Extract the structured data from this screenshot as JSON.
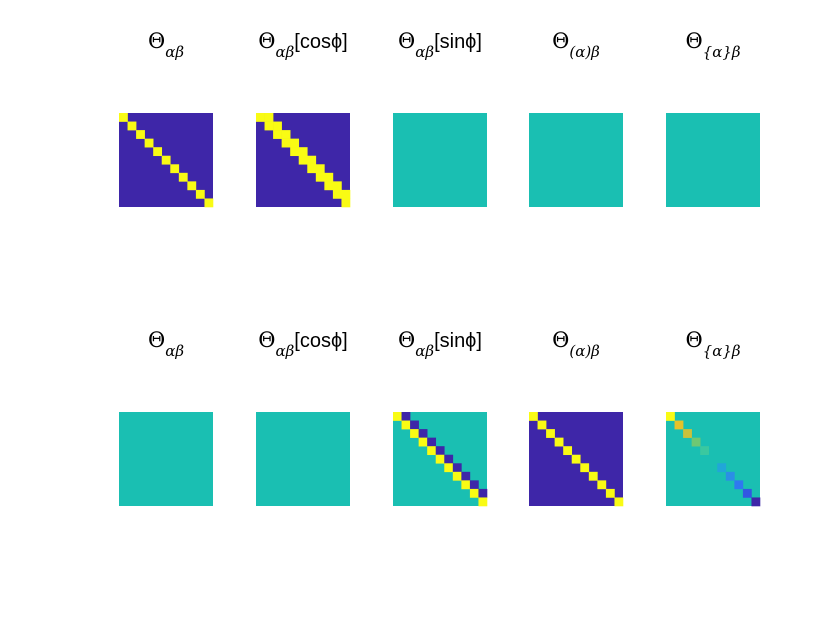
{
  "colors": {
    "low": "#3e26a8",
    "zero": "#1abfb2",
    "high": "#f9fb14"
  },
  "chart_data": [
    {
      "type": "heatmap",
      "row": 0,
      "col": 0,
      "title": {
        "sym": "Θ",
        "sub": "αβ",
        "suffix": ""
      },
      "pattern": "diag",
      "n": 11,
      "background": "low",
      "marks": {
        "0": "high"
      }
    },
    {
      "type": "heatmap",
      "row": 0,
      "col": 1,
      "title": {
        "sym": "Θ",
        "sub": "αβ",
        "suffix": "[cosϕ]"
      },
      "pattern": "diag_band",
      "n": 11,
      "background": "low",
      "marks": {
        "0": "high",
        "1": "high"
      }
    },
    {
      "type": "heatmap",
      "row": 0,
      "col": 2,
      "title": {
        "sym": "Θ",
        "sub": "αβ",
        "suffix": "[sinϕ]"
      },
      "pattern": "uniform",
      "n": 11,
      "background": "zero"
    },
    {
      "type": "heatmap",
      "row": 0,
      "col": 3,
      "title": {
        "sym": "Θ",
        "sub": "(α)β",
        "suffix": ""
      },
      "pattern": "uniform",
      "n": 11,
      "background": "zero"
    },
    {
      "type": "heatmap",
      "row": 0,
      "col": 4,
      "title": {
        "sym": "Θ",
        "sub": "{α}β",
        "suffix": ""
      },
      "pattern": "uniform",
      "n": 11,
      "background": "zero"
    },
    {
      "type": "heatmap",
      "row": 1,
      "col": 0,
      "title": {
        "sym": "Θ",
        "sub": "αβ",
        "suffix": ""
      },
      "pattern": "uniform",
      "n": 11,
      "background": "zero"
    },
    {
      "type": "heatmap",
      "row": 1,
      "col": 1,
      "title": {
        "sym": "Θ",
        "sub": "αβ",
        "suffix": "[cosϕ]"
      },
      "pattern": "uniform",
      "n": 11,
      "background": "zero"
    },
    {
      "type": "heatmap",
      "row": 1,
      "col": 2,
      "title": {
        "sym": "Θ",
        "sub": "αβ",
        "suffix": "[sinϕ]"
      },
      "pattern": "diag_band",
      "n": 11,
      "background": "zero",
      "marks": {
        "0": "high",
        "1": "low"
      }
    },
    {
      "type": "heatmap",
      "row": 1,
      "col": 3,
      "title": {
        "sym": "Θ",
        "sub": "(α)β",
        "suffix": ""
      },
      "pattern": "diag",
      "n": 11,
      "background": "low",
      "marks": {
        "0": "high"
      }
    },
    {
      "type": "heatmap",
      "row": 1,
      "col": 4,
      "title": {
        "sym": "Θ",
        "sub": "{α}β",
        "suffix": ""
      },
      "pattern": "diag_gradient",
      "n": 11,
      "background": "zero",
      "diagonal_colors": [
        "#f9fb14",
        "#e6c22a",
        "#c9c13c",
        "#6ec873",
        "#3ac8a0",
        "#1abfb2",
        "#21a6d8",
        "#2b8ee5",
        "#2f78f0",
        "#3257e2",
        "#3e26a8"
      ]
    }
  ]
}
